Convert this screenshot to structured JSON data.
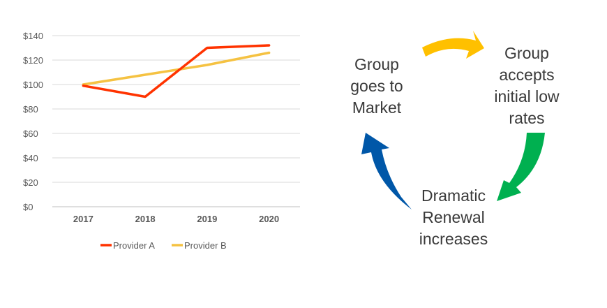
{
  "chart_data": {
    "type": "line",
    "title": "",
    "xlabel": "",
    "ylabel": "",
    "categories": [
      "2017",
      "2018",
      "2019",
      "2020"
    ],
    "ylim": [
      0,
      140
    ],
    "yticks": [
      "$0",
      "$20",
      "$40",
      "$60",
      "$80",
      "$100",
      "$120",
      "$140"
    ],
    "ytick_values": [
      0,
      20,
      40,
      60,
      80,
      100,
      120,
      140
    ],
    "grid": true,
    "legend_position": "bottom",
    "series": [
      {
        "name": "Provider A",
        "color": "#ff3300",
        "values": [
          99,
          90,
          130,
          132
        ]
      },
      {
        "name": "Provider B",
        "color": "#f5c242",
        "values": [
          100,
          108,
          116,
          126
        ]
      }
    ]
  },
  "cycle": {
    "market_label": "Group\ngoes to\nMarket",
    "accepts_label": "Group\naccepts\ninitial low\nrates",
    "renewal_label": "Dramatic\nRenewal\nincreases",
    "colors": {
      "top": "#ffc000",
      "right": "#00b050",
      "left": "#0057a8"
    }
  }
}
